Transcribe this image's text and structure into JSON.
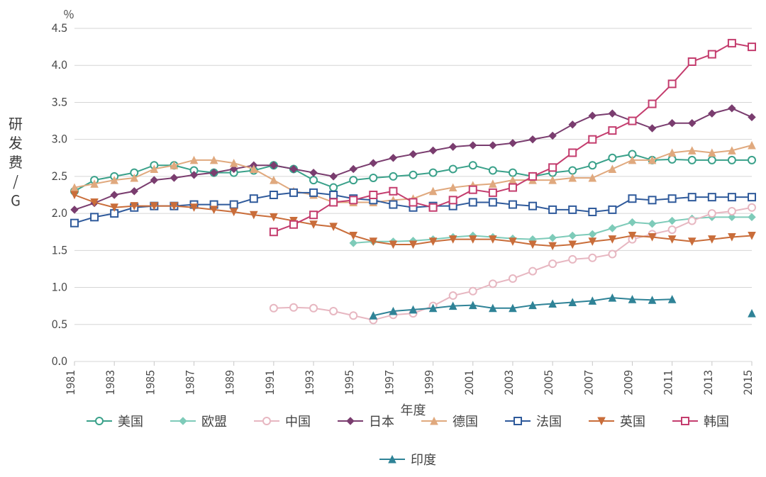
{
  "chart": {
    "type": "line",
    "background_color": "#ffffff",
    "grid_color": "#d5d5d5",
    "axis_color": "#c7c7c7",
    "text_color": "#4a4a4a",
    "tick_fontsize": 16,
    "ylabel_fontsize": 20,
    "legend_fontsize": 18,
    "percentlabel": "%",
    "x_axis_label": "年度",
    "y_axis_label": "研发费 / GDP",
    "ylim": [
      0.0,
      4.5
    ],
    "ytick_step": 0.5,
    "x_start_year": 1981,
    "x_end_year": 2015,
    "x_tick_step": 2,
    "xtick_years": [
      1981,
      1983,
      1985,
      1987,
      1989,
      1991,
      1993,
      1995,
      1997,
      1999,
      2001,
      2003,
      2005,
      2007,
      2009,
      2011,
      2013,
      2015
    ],
    "line_width": 2,
    "marker_size": 5,
    "series": [
      {
        "name": "美国",
        "color": "#3aa18a",
        "marker": "circle-open",
        "start_year": 1981,
        "values": [
          2.3,
          2.45,
          2.5,
          2.55,
          2.65,
          2.65,
          2.58,
          2.55,
          2.55,
          2.58,
          2.65,
          2.6,
          2.45,
          2.35,
          2.45,
          2.48,
          2.5,
          2.52,
          2.55,
          2.6,
          2.65,
          2.58,
          2.55,
          2.5,
          2.55,
          2.58,
          2.65,
          2.75,
          2.8,
          2.72,
          2.73,
          2.72,
          2.72,
          2.72,
          2.72
        ]
      },
      {
        "name": "欧盟",
        "color": "#7ecbb9",
        "marker": "diamond",
        "start_year": 1995,
        "values": [
          1.6,
          1.62,
          1.62,
          1.63,
          1.65,
          1.68,
          1.7,
          1.68,
          1.66,
          1.65,
          1.67,
          1.7,
          1.72,
          1.8,
          1.88,
          1.86,
          1.9,
          1.93,
          1.95,
          1.95,
          1.95
        ]
      },
      {
        "name": "中国",
        "color": "#e7b7c1",
        "marker": "circle-open",
        "start_year": 1991,
        "values": [
          0.72,
          0.73,
          0.72,
          0.68,
          0.62,
          0.56,
          0.63,
          0.65,
          0.75,
          0.89,
          0.95,
          1.05,
          1.12,
          1.22,
          1.32,
          1.38,
          1.4,
          1.45,
          1.65,
          1.72,
          1.78,
          1.9,
          2.0,
          2.03,
          2.08
        ]
      },
      {
        "name": "日本",
        "color": "#7a3d6f",
        "marker": "diamond",
        "start_year": 1981,
        "values": [
          2.05,
          2.14,
          2.25,
          2.3,
          2.45,
          2.48,
          2.52,
          2.55,
          2.6,
          2.65,
          2.65,
          2.6,
          2.55,
          2.5,
          2.6,
          2.68,
          2.75,
          2.8,
          2.85,
          2.9,
          2.92,
          2.92,
          2.95,
          3.0,
          3.05,
          3.2,
          3.32,
          3.35,
          3.25,
          3.15,
          3.22,
          3.22,
          3.35,
          3.42,
          3.3
        ]
      },
      {
        "name": "德国",
        "color": "#e0a97e",
        "marker": "triangle",
        "start_year": 1981,
        "values": [
          2.35,
          2.4,
          2.45,
          2.48,
          2.6,
          2.65,
          2.72,
          2.72,
          2.68,
          2.6,
          2.45,
          2.3,
          2.25,
          2.15,
          2.15,
          2.15,
          2.18,
          2.2,
          2.3,
          2.35,
          2.38,
          2.4,
          2.45,
          2.45,
          2.45,
          2.48,
          2.48,
          2.6,
          2.72,
          2.72,
          2.82,
          2.85,
          2.82,
          2.85,
          2.92
        ]
      },
      {
        "name": "法国",
        "color": "#2f5a9b",
        "marker": "square-open",
        "start_year": 1981,
        "values": [
          1.87,
          1.95,
          2.0,
          2.08,
          2.1,
          2.1,
          2.12,
          2.12,
          2.12,
          2.2,
          2.25,
          2.28,
          2.28,
          2.25,
          2.2,
          2.18,
          2.12,
          2.08,
          2.1,
          2.1,
          2.15,
          2.15,
          2.12,
          2.1,
          2.05,
          2.05,
          2.02,
          2.05,
          2.2,
          2.18,
          2.2,
          2.22,
          2.22,
          2.22,
          2.22
        ]
      },
      {
        "name": "英国",
        "color": "#c96d3a",
        "marker": "triangle-down",
        "start_year": 1981,
        "values": [
          2.25,
          2.15,
          2.08,
          2.1,
          2.1,
          2.1,
          2.08,
          2.05,
          2.02,
          1.98,
          1.95,
          1.9,
          1.85,
          1.82,
          1.7,
          1.62,
          1.58,
          1.58,
          1.62,
          1.65,
          1.65,
          1.65,
          1.62,
          1.58,
          1.56,
          1.58,
          1.62,
          1.65,
          1.7,
          1.68,
          1.65,
          1.62,
          1.65,
          1.68,
          1.7
        ]
      },
      {
        "name": "韩国",
        "color": "#c43d6e",
        "marker": "square-open",
        "start_year": 1991,
        "values": [
          1.75,
          1.85,
          1.98,
          2.15,
          2.18,
          2.25,
          2.3,
          2.15,
          2.08,
          2.18,
          2.32,
          2.28,
          2.35,
          2.5,
          2.62,
          2.82,
          3.0,
          3.12,
          3.25,
          3.48,
          3.75,
          4.05,
          4.15,
          4.3,
          4.25
        ]
      },
      {
        "name": "印度",
        "color": "#2f8397",
        "marker": "triangle",
        "start_year": 1996,
        "values": [
          0.62,
          0.68,
          0.7,
          0.72,
          0.75,
          0.76,
          0.72,
          0.72,
          0.76,
          0.78,
          0.8,
          0.82,
          0.86,
          0.84,
          0.83,
          0.84,
          null,
          null,
          null,
          0.65
        ]
      }
    ]
  }
}
